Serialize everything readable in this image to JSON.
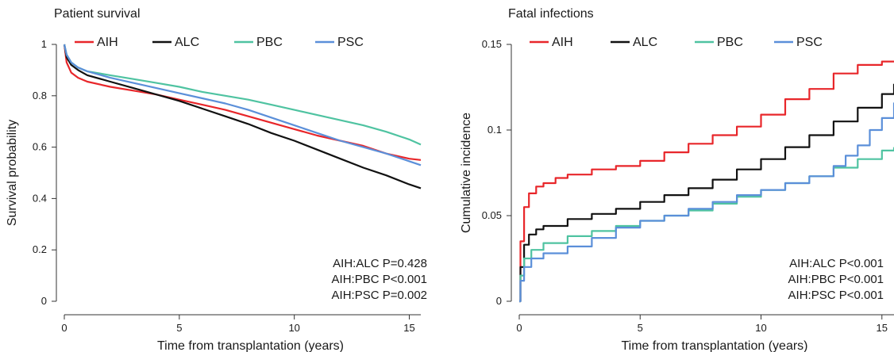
{
  "chart_data": [
    {
      "type": "line",
      "title": "Patient survival",
      "xlabel": "Time from transplantation (years)",
      "ylabel": "Survival probability",
      "xlim": [
        0,
        15.5
      ],
      "ylim": [
        0,
        1
      ],
      "xticks": [
        0,
        5,
        10,
        15
      ],
      "yticks": [
        0,
        0.2,
        0.4,
        0.6,
        0.8,
        1
      ],
      "ytick_labels": [
        "0",
        "0.2",
        "0.4",
        "0.6",
        "0.8",
        "1"
      ],
      "legend": "top",
      "series": [
        {
          "name": "AIH",
          "color": "#e8262a",
          "x": [
            0,
            0.1,
            0.3,
            0.6,
            1,
            2,
            3,
            4,
            5,
            6,
            7,
            8,
            9,
            10,
            11,
            12,
            13,
            14,
            15,
            15.5
          ],
          "y": [
            1,
            0.93,
            0.89,
            0.87,
            0.855,
            0.835,
            0.82,
            0.805,
            0.785,
            0.765,
            0.745,
            0.72,
            0.695,
            0.67,
            0.645,
            0.625,
            0.605,
            0.575,
            0.555,
            0.55
          ]
        },
        {
          "name": "ALC",
          "color": "#111111",
          "x": [
            0,
            0.1,
            0.3,
            0.6,
            1,
            2,
            3,
            4,
            5,
            6,
            7,
            8,
            9,
            10,
            11,
            12,
            13,
            14,
            15,
            15.5
          ],
          "y": [
            1,
            0.95,
            0.92,
            0.9,
            0.88,
            0.855,
            0.83,
            0.805,
            0.78,
            0.75,
            0.72,
            0.69,
            0.655,
            0.625,
            0.59,
            0.555,
            0.52,
            0.49,
            0.455,
            0.44
          ]
        },
        {
          "name": "PBC",
          "color": "#4fc3a1",
          "x": [
            0,
            0.1,
            0.3,
            0.6,
            1,
            2,
            3,
            4,
            5,
            6,
            7,
            8,
            9,
            10,
            11,
            12,
            13,
            14,
            15,
            15.5
          ],
          "y": [
            1,
            0.96,
            0.93,
            0.91,
            0.895,
            0.88,
            0.865,
            0.85,
            0.835,
            0.815,
            0.8,
            0.785,
            0.765,
            0.745,
            0.725,
            0.705,
            0.685,
            0.66,
            0.63,
            0.61
          ]
        },
        {
          "name": "PSC",
          "color": "#5b8fd9",
          "x": [
            0,
            0.1,
            0.3,
            0.6,
            1,
            2,
            3,
            4,
            5,
            6,
            7,
            8,
            9,
            10,
            11,
            12,
            13,
            14,
            15,
            15.5
          ],
          "y": [
            1,
            0.96,
            0.93,
            0.91,
            0.895,
            0.87,
            0.85,
            0.83,
            0.81,
            0.79,
            0.77,
            0.745,
            0.715,
            0.685,
            0.655,
            0.625,
            0.6,
            0.575,
            0.545,
            0.53
          ]
        }
      ],
      "annotations": [
        "AIH:ALC P=0.428",
        "AIH:PBC P<0.001",
        "AIH:PSC P=0.002"
      ]
    },
    {
      "type": "line",
      "title": "Fatal infections",
      "xlabel": "Time from transplantation (years)",
      "ylabel": "Cumulative incidence",
      "xlim": [
        0,
        15.5
      ],
      "ylim": [
        0,
        0.15
      ],
      "xticks": [
        0,
        5,
        10,
        15
      ],
      "yticks": [
        0,
        0.05,
        0.1,
        0.15
      ],
      "ytick_labels": [
        "0",
        "0.05",
        "0.1",
        "0.15"
      ],
      "legend": "top",
      "series": [
        {
          "name": "AIH",
          "color": "#e8262a",
          "x": [
            0,
            0.05,
            0.2,
            0.4,
            0.7,
            1,
            1.5,
            2,
            3,
            4,
            5,
            6,
            7,
            8,
            9,
            10,
            11,
            12,
            13,
            14,
            15,
            15.5
          ],
          "y": [
            0,
            0.035,
            0.055,
            0.063,
            0.067,
            0.069,
            0.072,
            0.074,
            0.077,
            0.079,
            0.082,
            0.087,
            0.092,
            0.097,
            0.102,
            0.109,
            0.118,
            0.124,
            0.133,
            0.138,
            0.14,
            0.14
          ]
        },
        {
          "name": "ALC",
          "color": "#111111",
          "x": [
            0,
            0.05,
            0.2,
            0.4,
            0.7,
            1,
            2,
            3,
            4,
            5,
            6,
            7,
            8,
            9,
            10,
            11,
            12,
            13,
            14,
            15,
            15.5
          ],
          "y": [
            0,
            0.02,
            0.033,
            0.039,
            0.042,
            0.044,
            0.048,
            0.051,
            0.054,
            0.058,
            0.062,
            0.066,
            0.071,
            0.077,
            0.083,
            0.09,
            0.097,
            0.105,
            0.113,
            0.121,
            0.127
          ]
        },
        {
          "name": "PBC",
          "color": "#4fc3a1",
          "x": [
            0,
            0.05,
            0.2,
            0.5,
            1,
            2,
            3,
            4,
            5,
            6,
            7,
            8,
            9,
            10,
            11,
            12,
            13,
            14,
            15,
            15.5
          ],
          "y": [
            0,
            0.015,
            0.025,
            0.03,
            0.034,
            0.038,
            0.041,
            0.044,
            0.047,
            0.05,
            0.053,
            0.057,
            0.061,
            0.065,
            0.069,
            0.073,
            0.078,
            0.083,
            0.088,
            0.09
          ]
        },
        {
          "name": "PSC",
          "color": "#5b8fd9",
          "x": [
            0,
            0.05,
            0.2,
            0.5,
            1,
            2,
            3,
            4,
            5,
            6,
            7,
            8,
            9,
            10,
            11,
            12,
            13,
            13.5,
            14,
            14.5,
            15,
            15.5
          ],
          "y": [
            0,
            0.012,
            0.02,
            0.025,
            0.028,
            0.032,
            0.037,
            0.043,
            0.047,
            0.05,
            0.054,
            0.058,
            0.062,
            0.065,
            0.069,
            0.073,
            0.079,
            0.085,
            0.091,
            0.1,
            0.107,
            0.116
          ]
        }
      ],
      "annotations": [
        "AIH:ALC P<0.001",
        "AIH:PBC P<0.001",
        "AIH:PSC P<0.001"
      ]
    }
  ]
}
